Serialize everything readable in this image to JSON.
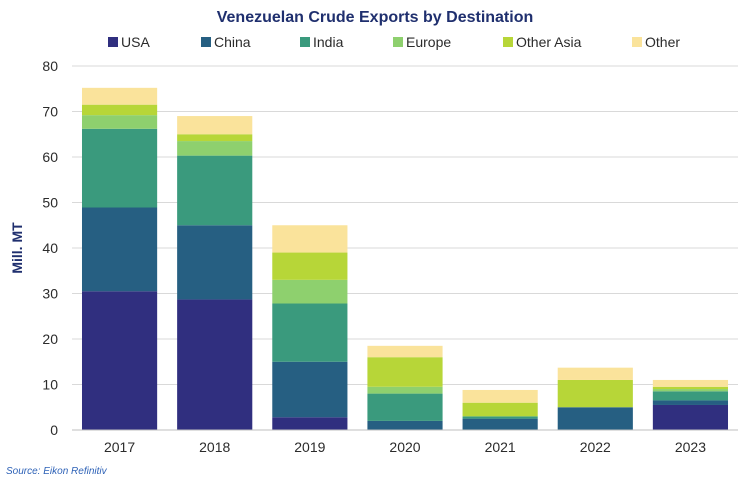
{
  "chart_data": {
    "type": "bar",
    "stacked": true,
    "title": "Venezuelan Crude Exports by Destination",
    "xlabel": "",
    "ylabel": "Mill. MT",
    "ylim": [
      0,
      80
    ],
    "yticks": [
      "0",
      "10",
      "20",
      "30",
      "40",
      "50",
      "60",
      "70",
      "80"
    ],
    "categories": [
      "2017",
      "2018",
      "2019",
      "2020",
      "2021",
      "2022",
      "2023"
    ],
    "grid": true,
    "legend_position": "top",
    "series": [
      {
        "name": "USA",
        "color": "#302f7f",
        "values": [
          30.5,
          28.7,
          2.8,
          0.0,
          0.0,
          0.0,
          5.5
        ]
      },
      {
        "name": "China",
        "color": "#265f82",
        "values": [
          18.4,
          16.3,
          12.2,
          2.0,
          2.5,
          5.0,
          1.0
        ]
      },
      {
        "name": "India",
        "color": "#3a9a7d",
        "values": [
          17.3,
          15.3,
          12.8,
          6.0,
          0.5,
          0.0,
          2.0
        ]
      },
      {
        "name": "Europe",
        "color": "#8ed06e",
        "values": [
          3.0,
          3.2,
          5.2,
          1.5,
          0.0,
          0.0,
          0.5
        ]
      },
      {
        "name": "Other Asia",
        "color": "#b7d638",
        "values": [
          2.3,
          1.5,
          6.0,
          6.5,
          3.0,
          6.0,
          0.5
        ]
      },
      {
        "name": "Other",
        "color": "#fae39b",
        "values": [
          3.7,
          4.0,
          6.0,
          2.5,
          2.8,
          2.7,
          1.5
        ]
      }
    ]
  },
  "source": "Source: Eikon Refinitiv"
}
